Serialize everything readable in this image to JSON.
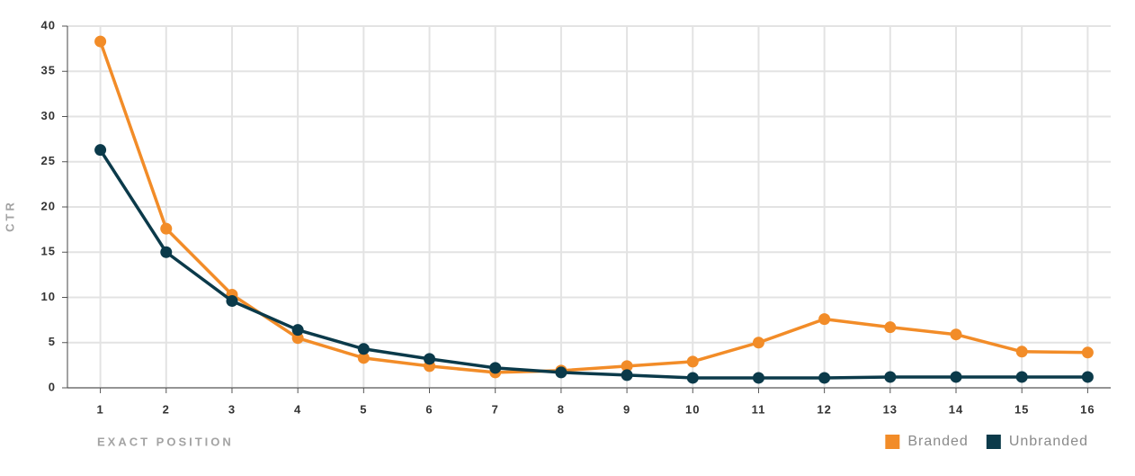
{
  "chart_data": {
    "type": "line",
    "x_label": "EXACT POSITION",
    "y_label": "CTR",
    "x": [
      1,
      2,
      3,
      4,
      5,
      6,
      7,
      8,
      9,
      10,
      11,
      12,
      13,
      14,
      15,
      16
    ],
    "series": [
      {
        "name": "Branded",
        "color": "#f28c28",
        "values": [
          38.3,
          17.6,
          10.3,
          5.5,
          3.3,
          2.4,
          1.7,
          1.9,
          2.4,
          2.9,
          5.0,
          7.6,
          6.7,
          5.9,
          4.0,
          3.9
        ]
      },
      {
        "name": "Unbranded",
        "color": "#0b3a4a",
        "values": [
          26.3,
          15.0,
          9.6,
          6.4,
          4.3,
          3.2,
          2.2,
          1.7,
          1.4,
          1.1,
          1.1,
          1.1,
          1.2,
          1.2,
          1.2,
          1.2
        ]
      }
    ],
    "xlim": [
      0.5,
      16.35
    ],
    "xticks": [
      1,
      2,
      3,
      4,
      5,
      6,
      7,
      8,
      9,
      10,
      11,
      12,
      13,
      14,
      15,
      16
    ],
    "ylim": [
      0,
      40
    ],
    "yticks": [
      0,
      5,
      10,
      15,
      20,
      25,
      30,
      35,
      40
    ],
    "grid": true,
    "legend": "bottom-right"
  }
}
